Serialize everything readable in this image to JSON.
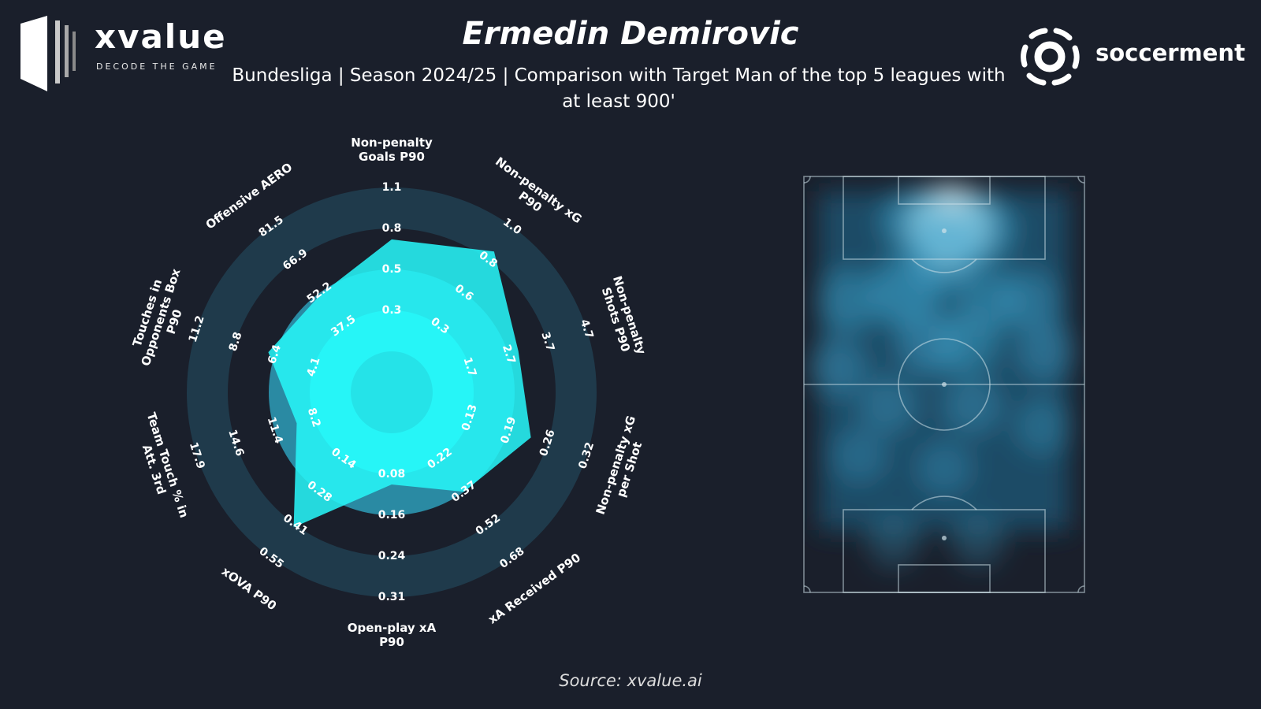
{
  "header": {
    "title": "Ermedin Demirovic",
    "subtitle": "Bundesliga | Season 2024/25 | Comparison with Target Man of the top 5 leagues with at least 900'",
    "source": "Source: xvalue.ai"
  },
  "brands": {
    "left": {
      "name": "xvalue",
      "tagline": "DECODE THE GAME"
    },
    "right": {
      "name": "soccerment"
    }
  },
  "colors": {
    "background": "#1a1f2b",
    "ring_outer": "#1f3a4b",
    "ring_mid": "#2a8aa3",
    "ring_inner": "#23fdfd",
    "player_fill": "#27f4f6",
    "heatmap_base": "#1d4b66",
    "heatmap_hot": "#d8f6ff"
  },
  "chart_data": [
    {
      "type": "radar",
      "title": "Ermedin Demirovic",
      "metrics": [
        {
          "label": "Non-penalty Goals P90",
          "ticks": [
            "0.3",
            "0.5",
            "0.8",
            "1.1"
          ],
          "value": 0.72
        },
        {
          "label": "Non-penalty xG P90",
          "ticks": [
            "0.3",
            "0.6",
            "0.8",
            "1.0"
          ],
          "value": 0.85
        },
        {
          "label": "Non-penalty Shots P90",
          "ticks": [
            "1.7",
            "2.7",
            "3.7",
            "4.7"
          ],
          "value": 2.95
        },
        {
          "label": "Non-penalty xG per Shot",
          "ticks": [
            "0.13",
            "0.19",
            "0.26",
            "0.32"
          ],
          "value": 0.23
        },
        {
          "label": "xA Received P90",
          "ticks": [
            "0.22",
            "0.37",
            "0.52",
            "0.68"
          ],
          "value": 0.37
        },
        {
          "label": "Open-play xA P90",
          "ticks": [
            "0.08",
            "0.16",
            "0.24",
            "0.31"
          ],
          "value": 0.1
        },
        {
          "label": "xOVA P90",
          "ticks": [
            "0.14",
            "0.28",
            "0.41",
            "0.55"
          ],
          "value": 0.42
        },
        {
          "label": "Team Touch % in Att. 3rd",
          "ticks": [
            "8.2",
            "11.4",
            "14.6",
            "17.9"
          ],
          "value": 9.6
        },
        {
          "label": "Touches in Opponents Box P90",
          "ticks": [
            "4.1",
            "6.4",
            "8.8",
            "11.2"
          ],
          "value": 6.8
        },
        {
          "label": "Offensive AERO",
          "ticks": [
            "37.5",
            "52.2",
            "66.9",
            "81.5"
          ],
          "value": 51.5
        }
      ]
    },
    {
      "type": "heatmap",
      "hotspots": [
        {
          "x": 0.52,
          "y": 0.12,
          "intensity": 1.0
        },
        {
          "x": 0.4,
          "y": 0.11,
          "intensity": 0.55
        },
        {
          "x": 0.63,
          "y": 0.13,
          "intensity": 0.55
        },
        {
          "x": 0.5,
          "y": 0.2,
          "intensity": 0.6
        },
        {
          "x": 0.36,
          "y": 0.28,
          "intensity": 0.6
        },
        {
          "x": 0.16,
          "y": 0.3,
          "intensity": 0.4
        },
        {
          "x": 0.66,
          "y": 0.3,
          "intensity": 0.4
        },
        {
          "x": 0.8,
          "y": 0.3,
          "intensity": 0.35
        },
        {
          "x": 0.12,
          "y": 0.46,
          "intensity": 0.3
        },
        {
          "x": 0.45,
          "y": 0.4,
          "intensity": 0.45
        },
        {
          "x": 0.58,
          "y": 0.4,
          "intensity": 0.42
        },
        {
          "x": 0.86,
          "y": 0.42,
          "intensity": 0.3
        },
        {
          "x": 0.3,
          "y": 0.55,
          "intensity": 0.28
        },
        {
          "x": 0.6,
          "y": 0.55,
          "intensity": 0.28
        },
        {
          "x": 0.85,
          "y": 0.6,
          "intensity": 0.22
        },
        {
          "x": 0.2,
          "y": 0.67,
          "intensity": 0.2
        },
        {
          "x": 0.5,
          "y": 0.7,
          "intensity": 0.2
        },
        {
          "x": 0.32,
          "y": 0.88,
          "intensity": 0.12
        },
        {
          "x": 0.62,
          "y": 0.88,
          "intensity": 0.12
        }
      ]
    }
  ]
}
